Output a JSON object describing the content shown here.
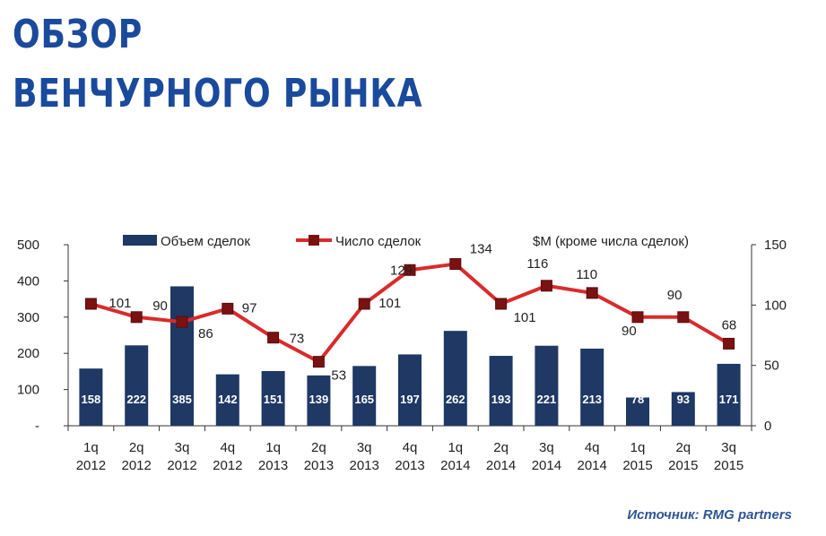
{
  "title": {
    "line1": "ОБЗОР",
    "line2": "ВЕНЧУРНОГО РЫНКА"
  },
  "source": "Источник: RMG partners",
  "colors": {
    "title": "#1a4a9c",
    "bar": "#1f3864",
    "line": "#d92b2b",
    "marker": "#7a1212",
    "source": "#2f5597"
  },
  "chart_data": {
    "type": "bar",
    "categories": [
      [
        "1q",
        "2012"
      ],
      [
        "2q",
        "2012"
      ],
      [
        "3q",
        "2012"
      ],
      [
        "4q",
        "2012"
      ],
      [
        "1q",
        "2013"
      ],
      [
        "2q",
        "2013"
      ],
      [
        "3q",
        "2013"
      ],
      [
        "4q",
        "2013"
      ],
      [
        "1q",
        "2014"
      ],
      [
        "2q",
        "2014"
      ],
      [
        "3q",
        "2014"
      ],
      [
        "4q",
        "2014"
      ],
      [
        "1q",
        "2015"
      ],
      [
        "2q",
        "2015"
      ],
      [
        "3q",
        "2015"
      ]
    ],
    "series": [
      {
        "name": "Объем сделок",
        "type": "bar",
        "axis": "left",
        "values": [
          158,
          222,
          385,
          142,
          151,
          139,
          165,
          197,
          262,
          193,
          221,
          213,
          78,
          93,
          171
        ]
      },
      {
        "name": "Число сделок",
        "type": "line",
        "axis": "right",
        "values": [
          101,
          90,
          86,
          97,
          73,
          53,
          101,
          129,
          134,
          101,
          116,
          110,
          90,
          90,
          68
        ]
      }
    ],
    "left_axis": {
      "min": 0,
      "max": 500,
      "ticks": [
        "-",
        "100",
        "200",
        "300",
        "400",
        "500"
      ]
    },
    "right_axis": {
      "min": 0,
      "max": 150,
      "ticks": [
        "0",
        "50",
        "100",
        "150"
      ]
    },
    "unit_label": "$M (кроме числа сделок)",
    "legend": [
      "Объем сделок",
      "Число сделок"
    ],
    "legend_position": "top"
  }
}
